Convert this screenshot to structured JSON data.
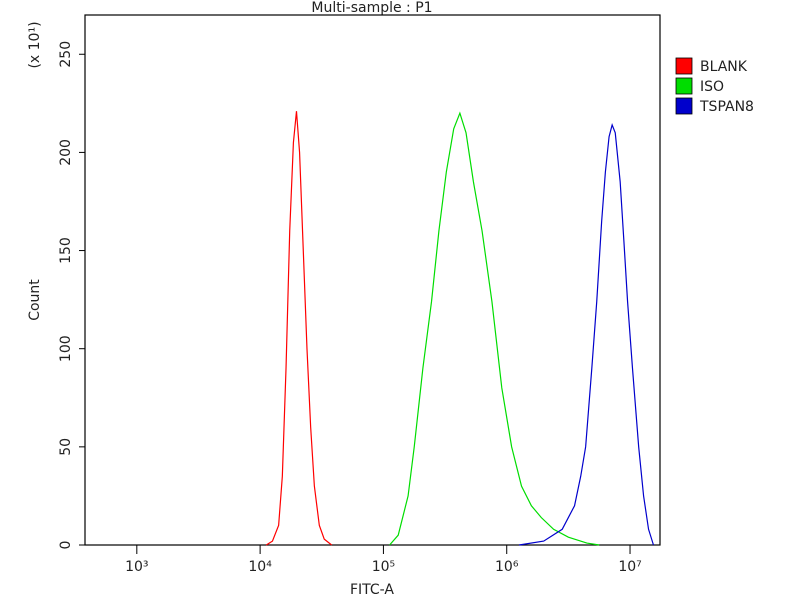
{
  "chart_data": {
    "type": "line",
    "title": "Multi-sample : P1",
    "x_label": "FITC-A",
    "y_label": "Count",
    "y_multiplier": "(x 10¹)",
    "xscale": "log",
    "xlim": [
      380,
      17500000
    ],
    "ylim": [
      0,
      270
    ],
    "xticks": [
      {
        "value": 1000,
        "label": "10³"
      },
      {
        "value": 10000,
        "label": "10⁴"
      },
      {
        "value": 100000,
        "label": "10⁵"
      },
      {
        "value": 1000000,
        "label": "10⁶"
      },
      {
        "value": 10000000,
        "label": "10⁷"
      }
    ],
    "yticks": [
      0,
      50,
      100,
      150,
      200,
      250
    ],
    "grid": false,
    "legend": "right",
    "series": [
      {
        "name": "BLANK",
        "color": "#ff0000",
        "x": [
          11220,
          12590,
          14130,
          15140,
          16220,
          17380,
          18620,
          19720,
          20890,
          22390,
          23990,
          25700,
          27540,
          30200,
          33110,
          38020
        ],
        "values": [
          0,
          2,
          10,
          35,
          90,
          160,
          205,
          221,
          200,
          150,
          100,
          60,
          30,
          10,
          3,
          0
        ]
      },
      {
        "name": "ISO",
        "color": "#00dd00",
        "x": [
          112200,
          131800,
          158500,
          177800,
          208900,
          245500,
          281800,
          323600,
          371500,
          416900,
          467700,
          537000,
          631000,
          758600,
          912000,
          1096000,
          1318000,
          1585000,
          1905000,
          2399000,
          3162000,
          4467000,
          5623000
        ],
        "values": [
          0,
          5,
          25,
          50,
          90,
          124,
          160,
          190,
          212,
          220,
          210,
          185,
          160,
          124,
          80,
          50,
          30,
          20,
          14,
          8,
          4,
          1,
          0
        ]
      },
      {
        "name": "TSPAN8",
        "color": "#0000cc",
        "x": [
          1259000,
          1995000,
          2818000,
          3548000,
          3981000,
          4365000,
          4898000,
          5370000,
          5888000,
          6310000,
          6761000,
          7161000,
          7586000,
          8318000,
          8913000,
          9550000,
          10470000,
          11750000,
          12880000,
          14130000,
          15490000
        ],
        "values": [
          0,
          2,
          8,
          20,
          35,
          50,
          90,
          124,
          165,
          190,
          208,
          214,
          210,
          185,
          155,
          124,
          90,
          50,
          25,
          8,
          0
        ]
      }
    ]
  }
}
